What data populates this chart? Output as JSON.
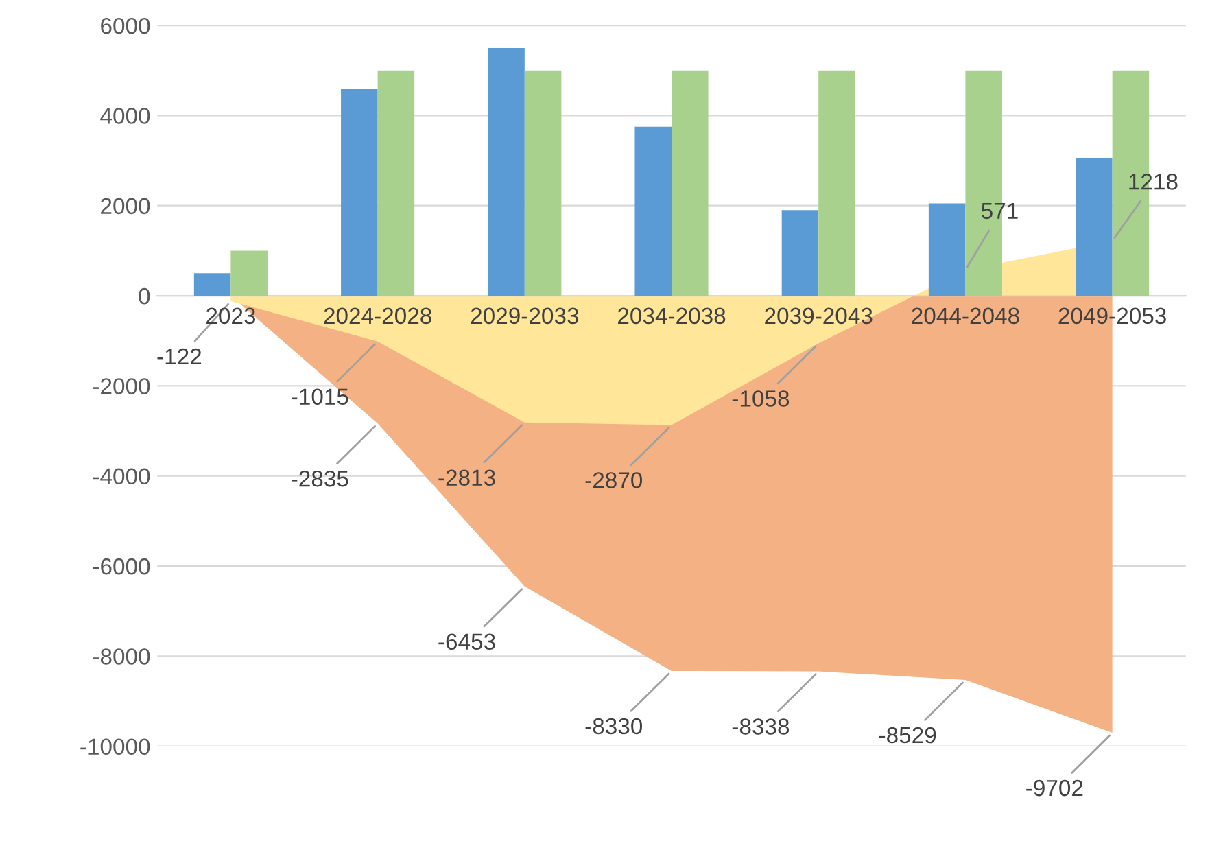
{
  "chart_data": {
    "type": "bar",
    "categories": [
      "2023",
      "2024-2028",
      "2029-2033",
      "2034-2038",
      "2039-2043",
      "2044-2048",
      "2049-2053"
    ],
    "series": [
      {
        "type": "area",
        "color": "#f4b183",
        "values": [
          0,
          -2835,
          -6453,
          -8330,
          -8338,
          -8529,
          -9702
        ],
        "value_labels": [
          null,
          "-2835",
          "-6453",
          "-8330",
          "-8338",
          "-8529",
          "-9702"
        ]
      },
      {
        "type": "area",
        "color": "#ffe699",
        "values": [
          -122,
          -1015,
          -2813,
          -2870,
          -1058,
          571,
          1218
        ],
        "value_labels": [
          "-122",
          "-1015",
          "-2813",
          "-2870",
          "-1058",
          "571",
          "1218"
        ]
      },
      {
        "color": "#5b9bd5",
        "values": [
          500,
          4600,
          5500,
          3750,
          1900,
          2050,
          3050
        ]
      },
      {
        "color": "#a9d18e",
        "values": [
          1000,
          5000,
          5000,
          5000,
          5000,
          5000,
          5000
        ]
      }
    ],
    "ylim": [
      -10000,
      6000
    ],
    "yticks": [
      -10000,
      -8000,
      -6000,
      -4000,
      -2000,
      0,
      2000,
      4000,
      6000
    ],
    "grid": "y",
    "legend": false
  }
}
